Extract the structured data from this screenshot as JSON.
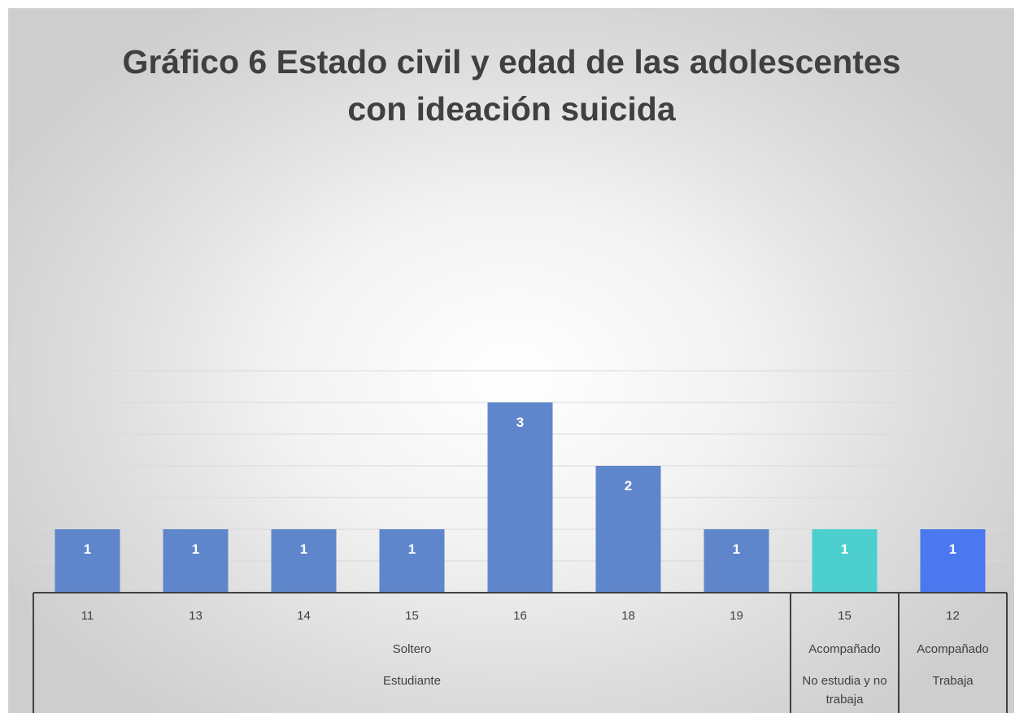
{
  "chart_data": {
    "type": "bar",
    "title_line1": "Gráfico 6 Estado civil y edad de las adolescentes",
    "title_line2": "con ideación suicida",
    "xlabel": "",
    "ylabel": "",
    "ylim": [
      0,
      3.5
    ],
    "grid": true,
    "legend": "none",
    "categories": [
      {
        "age": "11",
        "estado_civil": "Soltero",
        "ocupacion": "Estudiante",
        "value": 1,
        "color": "#5f86cb"
      },
      {
        "age": "13",
        "estado_civil": "Soltero",
        "ocupacion": "Estudiante",
        "value": 1,
        "color": "#5f86cb"
      },
      {
        "age": "14",
        "estado_civil": "Soltero",
        "ocupacion": "Estudiante",
        "value": 1,
        "color": "#5f86cb"
      },
      {
        "age": "15",
        "estado_civil": "Soltero",
        "ocupacion": "Estudiante",
        "value": 1,
        "color": "#5f86cb"
      },
      {
        "age": "16",
        "estado_civil": "Soltero",
        "ocupacion": "Estudiante",
        "value": 3,
        "color": "#5f86cb"
      },
      {
        "age": "18",
        "estado_civil": "Soltero",
        "ocupacion": "Estudiante",
        "value": 2,
        "color": "#5f86cb"
      },
      {
        "age": "19",
        "estado_civil": "Soltero",
        "ocupacion": "Estudiante",
        "value": 1,
        "color": "#5f86cb"
      },
      {
        "age": "15",
        "estado_civil": "Acompañado",
        "ocupacion": "No estudia y no trabaja",
        "value": 1,
        "color": "#4ecfcf"
      },
      {
        "age": "12",
        "estado_civil": "Acompañado",
        "ocupacion": "Trabaja",
        "value": 1,
        "color": "#4b77ef"
      }
    ],
    "groups_level2": [
      {
        "label": "Soltero",
        "start": 0,
        "end": 6
      },
      {
        "label": "Acompañado",
        "start": 7,
        "end": 7
      },
      {
        "label": "Acompañado",
        "start": 8,
        "end": 8
      }
    ],
    "groups_level3": [
      {
        "label": "Estudiante",
        "lines": [
          "Estudiante"
        ],
        "start": 0,
        "end": 6
      },
      {
        "label": "No estudia y no trabaja",
        "lines": [
          "No estudia y no",
          "trabaja"
        ],
        "start": 7,
        "end": 7
      },
      {
        "label": "Trabaja",
        "lines": [
          "Trabaja"
        ],
        "start": 8,
        "end": 8
      }
    ],
    "colors": {
      "axis": "#404040",
      "gridline": "#d9d9d9",
      "text": "#404040",
      "value_label": "#ffffff"
    }
  }
}
